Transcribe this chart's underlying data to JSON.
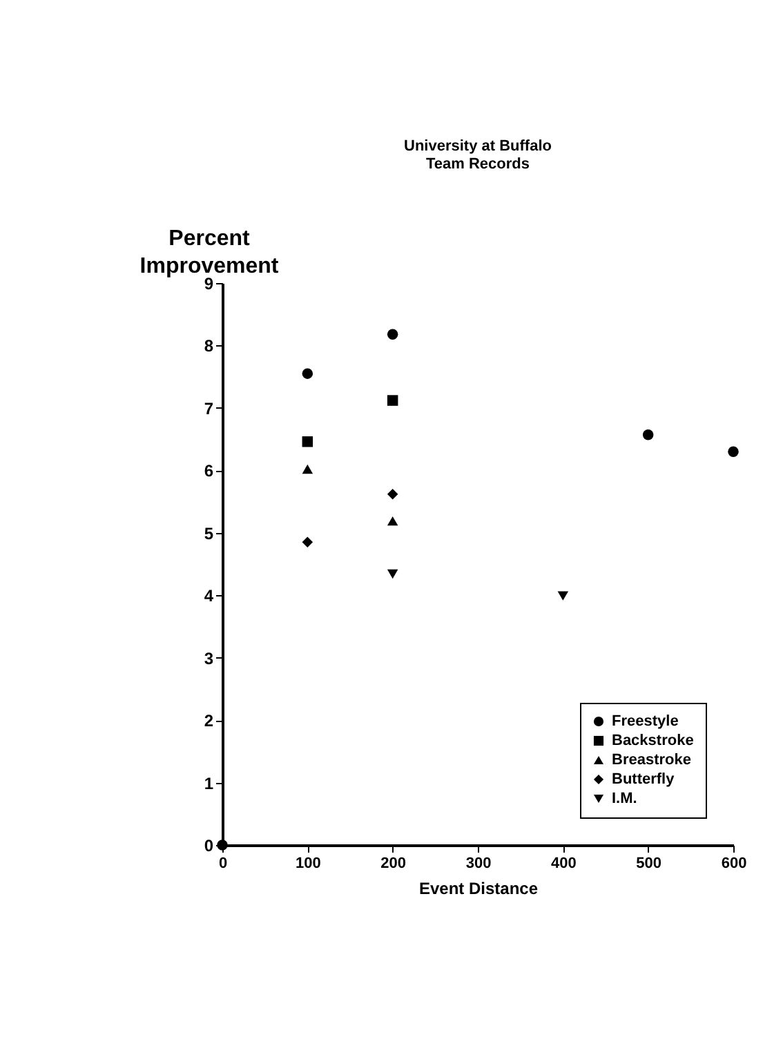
{
  "chart_data": {
    "type": "scatter",
    "title": "University at Buffalo\nTeam Records",
    "xlabel": "Event Distance",
    "ylabel": "Percent\nImprovement",
    "xlim": [
      0,
      600
    ],
    "xticks": [
      0,
      100,
      200,
      300,
      400,
      500,
      600
    ],
    "ylim": [
      0,
      9
    ],
    "yticks": [
      0,
      1,
      2,
      3,
      4,
      5,
      6,
      7,
      8,
      9
    ],
    "grid": false,
    "legend": "bottom right",
    "series": [
      {
        "name": "Freestyle",
        "color": "#000000",
        "marker": "circle",
        "x": [
          0,
          100,
          200,
          500,
          600
        ],
        "values": [
          0,
          7.55,
          8.18,
          6.57,
          6.3
        ]
      },
      {
        "name": "Backstroke",
        "color": "#000000",
        "marker": "square",
        "x": [
          100,
          200
        ],
        "values": [
          6.46,
          7.12
        ]
      },
      {
        "name": "Breastroke",
        "color": "#000000",
        "marker": "triangle",
        "x": [
          100,
          200
        ],
        "values": [
          6.02,
          5.19
        ]
      },
      {
        "name": "Butterfly",
        "color": "#000000",
        "marker": "diamond",
        "x": [
          100,
          200
        ],
        "values": [
          4.85,
          5.62
        ]
      },
      {
        "name": "I.M.",
        "color": "#000000",
        "marker": "triangle-down",
        "x": [
          200,
          400
        ],
        "values": [
          4.34,
          3.99
        ]
      }
    ]
  }
}
